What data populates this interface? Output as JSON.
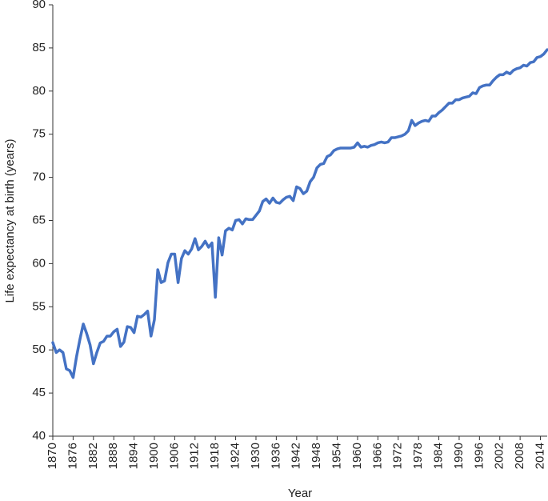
{
  "chart_data": {
    "type": "line",
    "x_label": "Year",
    "y_label": "Life expectancy at birth (years)",
    "xlim": [
      1870,
      2016
    ],
    "ylim": [
      40,
      90
    ],
    "xticks": [
      1870,
      1876,
      1882,
      1888,
      1894,
      1900,
      1906,
      1912,
      1918,
      1924,
      1930,
      1936,
      1942,
      1948,
      1954,
      1960,
      1966,
      1972,
      1978,
      1984,
      1990,
      1996,
      2002,
      2008,
      2014
    ],
    "yticks": [
      40,
      45,
      50,
      55,
      60,
      65,
      70,
      75,
      80,
      85,
      90
    ],
    "grid": false,
    "series": [
      {
        "color": "#4472c4",
        "x": [
          1870,
          1871,
          1872,
          1873,
          1874,
          1875,
          1876,
          1877,
          1878,
          1879,
          1880,
          1881,
          1882,
          1883,
          1884,
          1885,
          1886,
          1887,
          1888,
          1889,
          1890,
          1891,
          1892,
          1893,
          1894,
          1895,
          1896,
          1897,
          1898,
          1899,
          1900,
          1901,
          1902,
          1903,
          1904,
          1905,
          1906,
          1907,
          1908,
          1909,
          1910,
          1911,
          1912,
          1913,
          1914,
          1915,
          1916,
          1917,
          1918,
          1919,
          1920,
          1921,
          1922,
          1923,
          1924,
          1925,
          1926,
          1927,
          1928,
          1929,
          1930,
          1931,
          1932,
          1933,
          1934,
          1935,
          1936,
          1937,
          1938,
          1939,
          1940,
          1941,
          1942,
          1943,
          1944,
          1945,
          1946,
          1947,
          1948,
          1949,
          1950,
          1951,
          1952,
          1953,
          1954,
          1955,
          1956,
          1957,
          1958,
          1959,
          1960,
          1961,
          1962,
          1963,
          1964,
          1965,
          1966,
          1967,
          1968,
          1969,
          1970,
          1971,
          1972,
          1973,
          1974,
          1975,
          1976,
          1977,
          1978,
          1979,
          1980,
          1981,
          1982,
          1983,
          1984,
          1985,
          1986,
          1987,
          1988,
          1989,
          1990,
          1991,
          1992,
          1993,
          1994,
          1995,
          1996,
          1997,
          1998,
          1999,
          2000,
          2001,
          2002,
          2003,
          2004,
          2005,
          2006,
          2007,
          2008,
          2009,
          2010,
          2011,
          2012,
          2013,
          2014,
          2015,
          2016
        ],
        "values": [
          50.85,
          49.7,
          50.0,
          49.7,
          47.8,
          47.6,
          46.8,
          49.2,
          51.2,
          53.0,
          51.9,
          50.6,
          48.4,
          49.7,
          50.8,
          51.0,
          51.6,
          51.6,
          52.1,
          52.4,
          50.4,
          50.9,
          52.7,
          52.6,
          52.0,
          53.9,
          53.8,
          54.1,
          54.5,
          51.6,
          53.5,
          59.3,
          57.8,
          58.0,
          60.1,
          61.1,
          61.1,
          57.8,
          60.6,
          61.5,
          61.1,
          61.7,
          62.9,
          61.6,
          62.0,
          62.6,
          61.9,
          62.4,
          56.1,
          63.0,
          61.0,
          63.8,
          64.1,
          63.9,
          65.0,
          65.1,
          64.6,
          65.2,
          65.1,
          65.1,
          65.6,
          66.1,
          67.2,
          67.5,
          67.0,
          67.6,
          67.1,
          67.0,
          67.4,
          67.7,
          67.8,
          67.3,
          68.9,
          68.7,
          68.1,
          68.4,
          69.5,
          70.0,
          71.1,
          71.5,
          71.6,
          72.4,
          72.6,
          73.1,
          73.3,
          73.4,
          73.4,
          73.4,
          73.4,
          73.5,
          74.0,
          73.5,
          73.6,
          73.5,
          73.7,
          73.8,
          74.0,
          74.1,
          74.0,
          74.1,
          74.6,
          74.6,
          74.7,
          74.8,
          75.0,
          75.4,
          76.6,
          76.0,
          76.3,
          76.5,
          76.6,
          76.5,
          77.1,
          77.1,
          77.5,
          77.8,
          78.2,
          78.6,
          78.6,
          79.0,
          79.0,
          79.2,
          79.3,
          79.4,
          79.8,
          79.7,
          80.4,
          80.6,
          80.7,
          80.7,
          81.2,
          81.6,
          81.9,
          81.9,
          82.2,
          82.0,
          82.4,
          82.6,
          82.7,
          83.0,
          82.9,
          83.3,
          83.4,
          83.9,
          84.0,
          84.3,
          84.8
        ]
      }
    ]
  }
}
